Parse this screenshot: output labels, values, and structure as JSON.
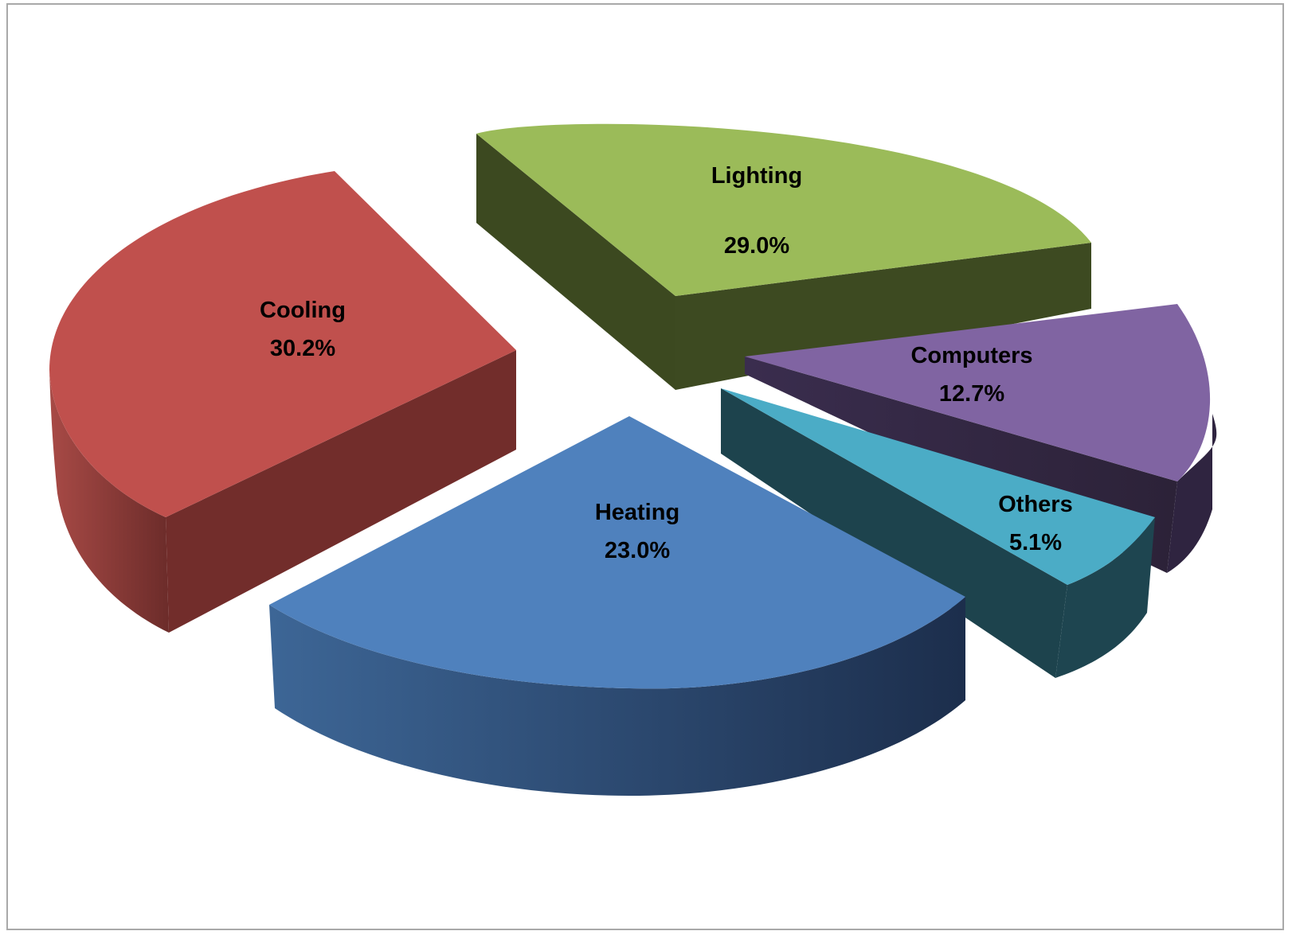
{
  "chart_data": {
    "type": "pie",
    "style": "3D exploded pie",
    "title": "",
    "legend": "none",
    "slices": [
      {
        "label": "Lighting",
        "value": 29.0,
        "value_label": "29.0%",
        "color": "#9BBB59"
      },
      {
        "label": "Computers",
        "value": 12.7,
        "value_label": "12.7%",
        "color": "#8064A2"
      },
      {
        "label": "Others",
        "value": 5.1,
        "value_label": "5.1%",
        "color": "#4BACC6"
      },
      {
        "label": "Heating",
        "value": 23.0,
        "value_label": "23.0%",
        "color": "#4F81BD"
      },
      {
        "label": "Cooling",
        "value": 30.2,
        "value_label": "30.2%",
        "color": "#C0504D"
      }
    ]
  }
}
